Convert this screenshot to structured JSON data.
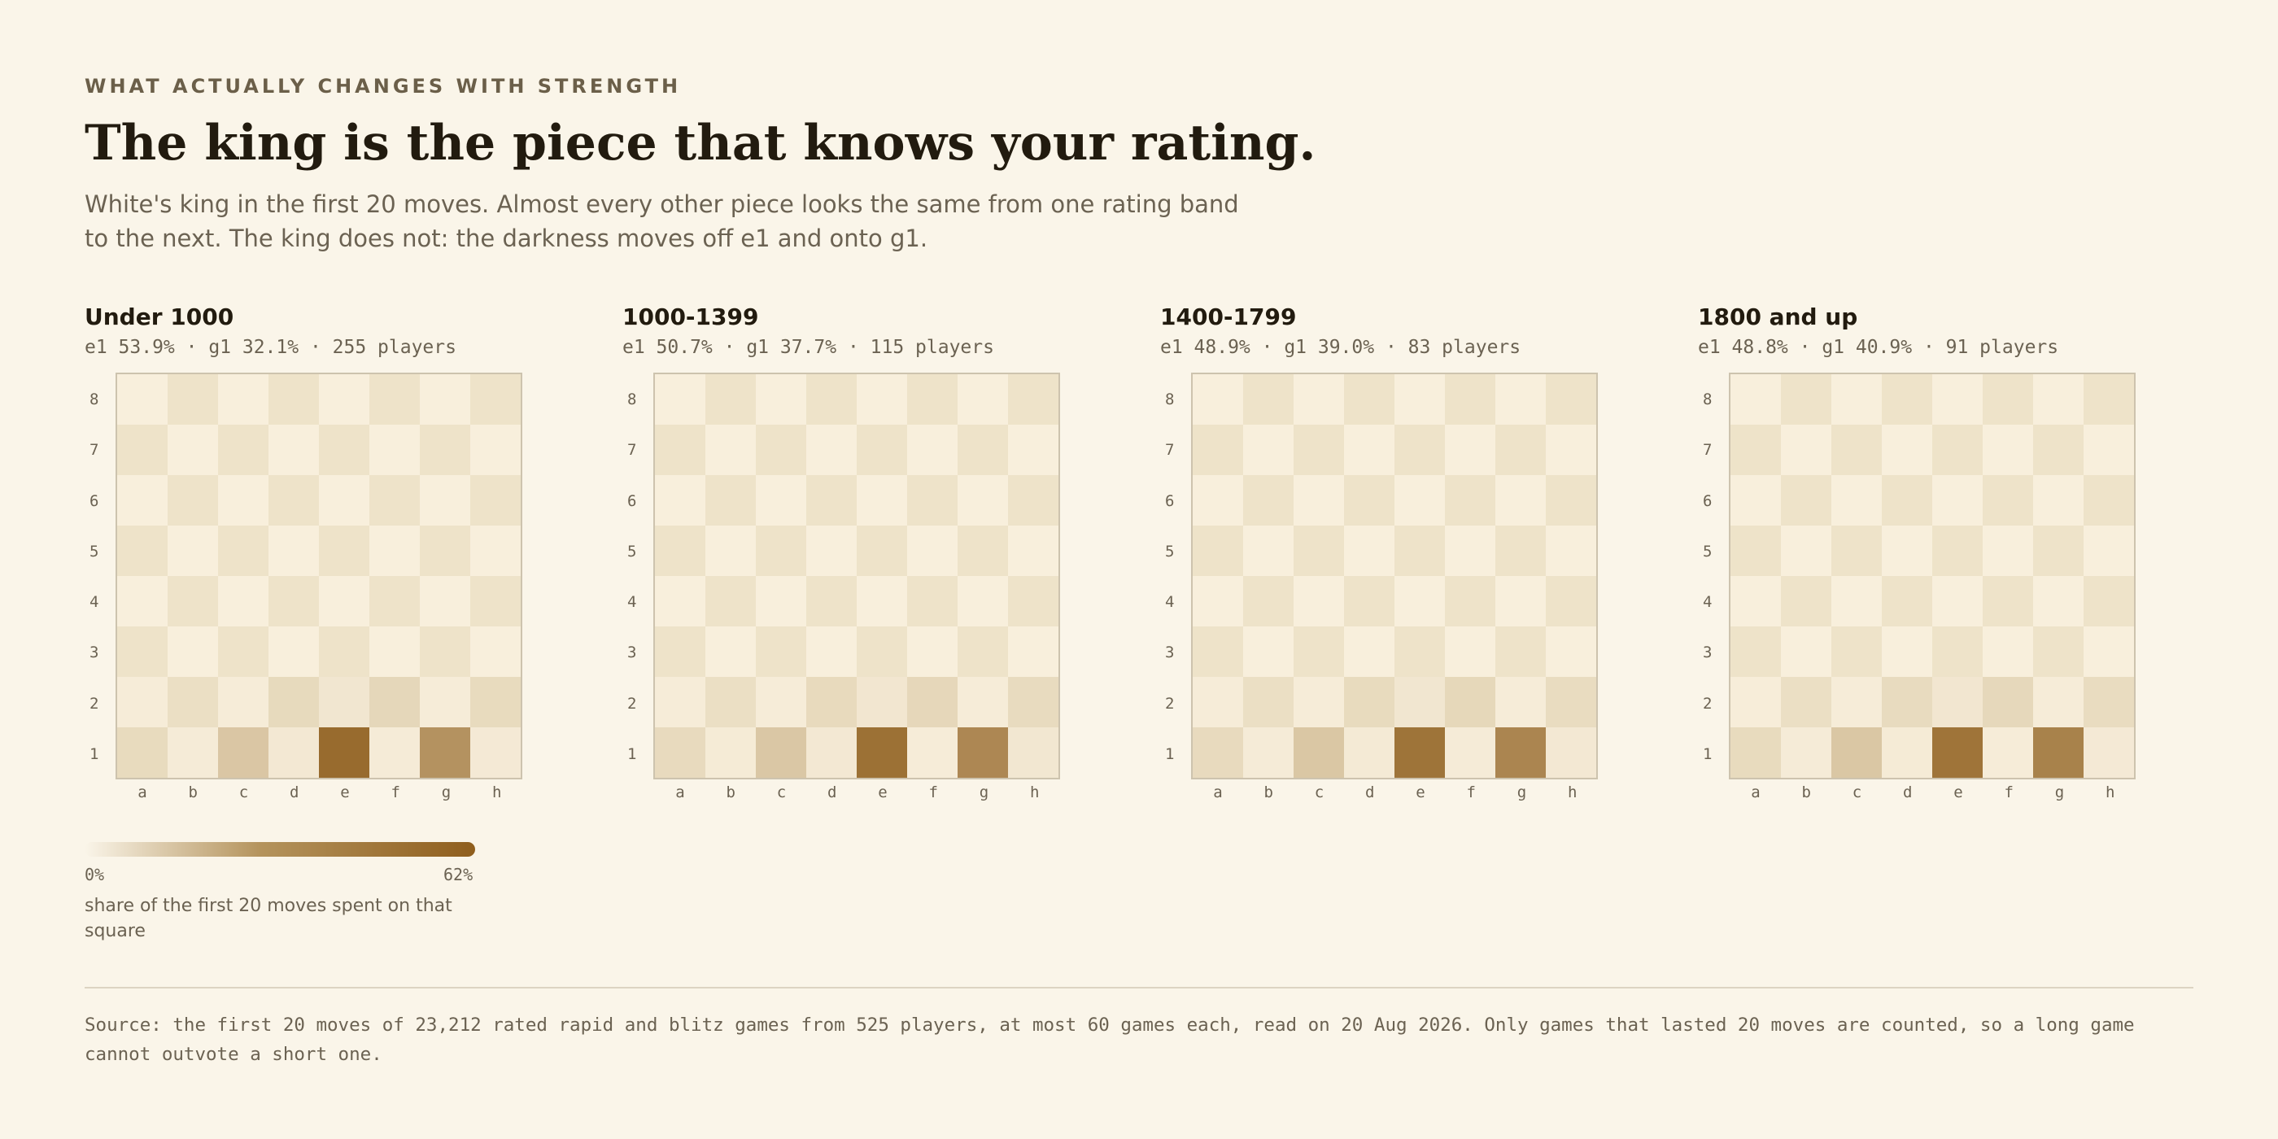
{
  "header": {
    "kicker": "WHAT ACTUALLY CHANGES WITH STRENGTH",
    "title": "The king is the piece that knows your rating.",
    "subtitle": "White's king in the first 20 moves. Almost every other piece looks the same from one rating band to the next. The king does not: the darkness moves off e1 and onto g1."
  },
  "colors": {
    "background": "#faf5e9",
    "light_square": "#f8efdc",
    "dark_square": "#eee3c9",
    "heat_max": "#8f5e1d"
  },
  "chart_data": {
    "type": "heatmap",
    "files": [
      "a",
      "b",
      "c",
      "d",
      "e",
      "f",
      "g",
      "h"
    ],
    "ranks": [
      "8",
      "7",
      "6",
      "5",
      "4",
      "3",
      "2",
      "1"
    ],
    "scale": {
      "min": 0,
      "max": 62,
      "unit": "%"
    },
    "panels": [
      {
        "title": "Under 1000",
        "stats": "e1 53.9% · g1 32.1% · 255 players",
        "rank1": [
          1.5,
          0.5,
          8.0,
          1.0,
          53.9,
          0.5,
          32.1,
          0.8
        ],
        "rank2": [
          0.3,
          0.6,
          0.4,
          1.8,
          1.6,
          2.5,
          0.3,
          1.5
        ]
      },
      {
        "title": "1000-1399",
        "stats": "e1 50.7% · g1 37.7% · 115 players",
        "rank1": [
          1.6,
          0.6,
          7.8,
          1.0,
          50.7,
          0.4,
          37.7,
          1.3
        ],
        "rank2": [
          0.3,
          0.5,
          0.4,
          1.7,
          1.5,
          2.4,
          0.3,
          1.4
        ]
      },
      {
        "title": "1400-1799",
        "stats": "e1 48.9% · g1 39.0% · 83 players",
        "rank1": [
          1.6,
          0.5,
          7.9,
          0.7,
          48.9,
          0.5,
          39.0,
          1.0
        ],
        "rank2": [
          0.3,
          0.6,
          0.4,
          1.5,
          1.6,
          2.3,
          0.3,
          1.3
        ]
      },
      {
        "title": "1800 and up",
        "stats": "e1 48.8% · g1 40.9% · 91 players",
        "rank1": [
          1.5,
          0.5,
          7.9,
          0.6,
          48.8,
          0.3,
          40.9,
          0.8
        ],
        "rank2": [
          0.2,
          0.5,
          0.4,
          1.4,
          1.5,
          2.2,
          0.3,
          1.2
        ]
      }
    ]
  },
  "legend": {
    "min_label": "0%",
    "max_label": "62%",
    "caption": "share of the first 20 moves spent on that square"
  },
  "footer": {
    "source": "Source: the first 20 moves of 23,212 rated rapid and blitz games from 525 players, at most 60 games each, read on 20 Aug 2026. Only games that lasted 20 moves are counted, so a long game cannot outvote a short one."
  }
}
